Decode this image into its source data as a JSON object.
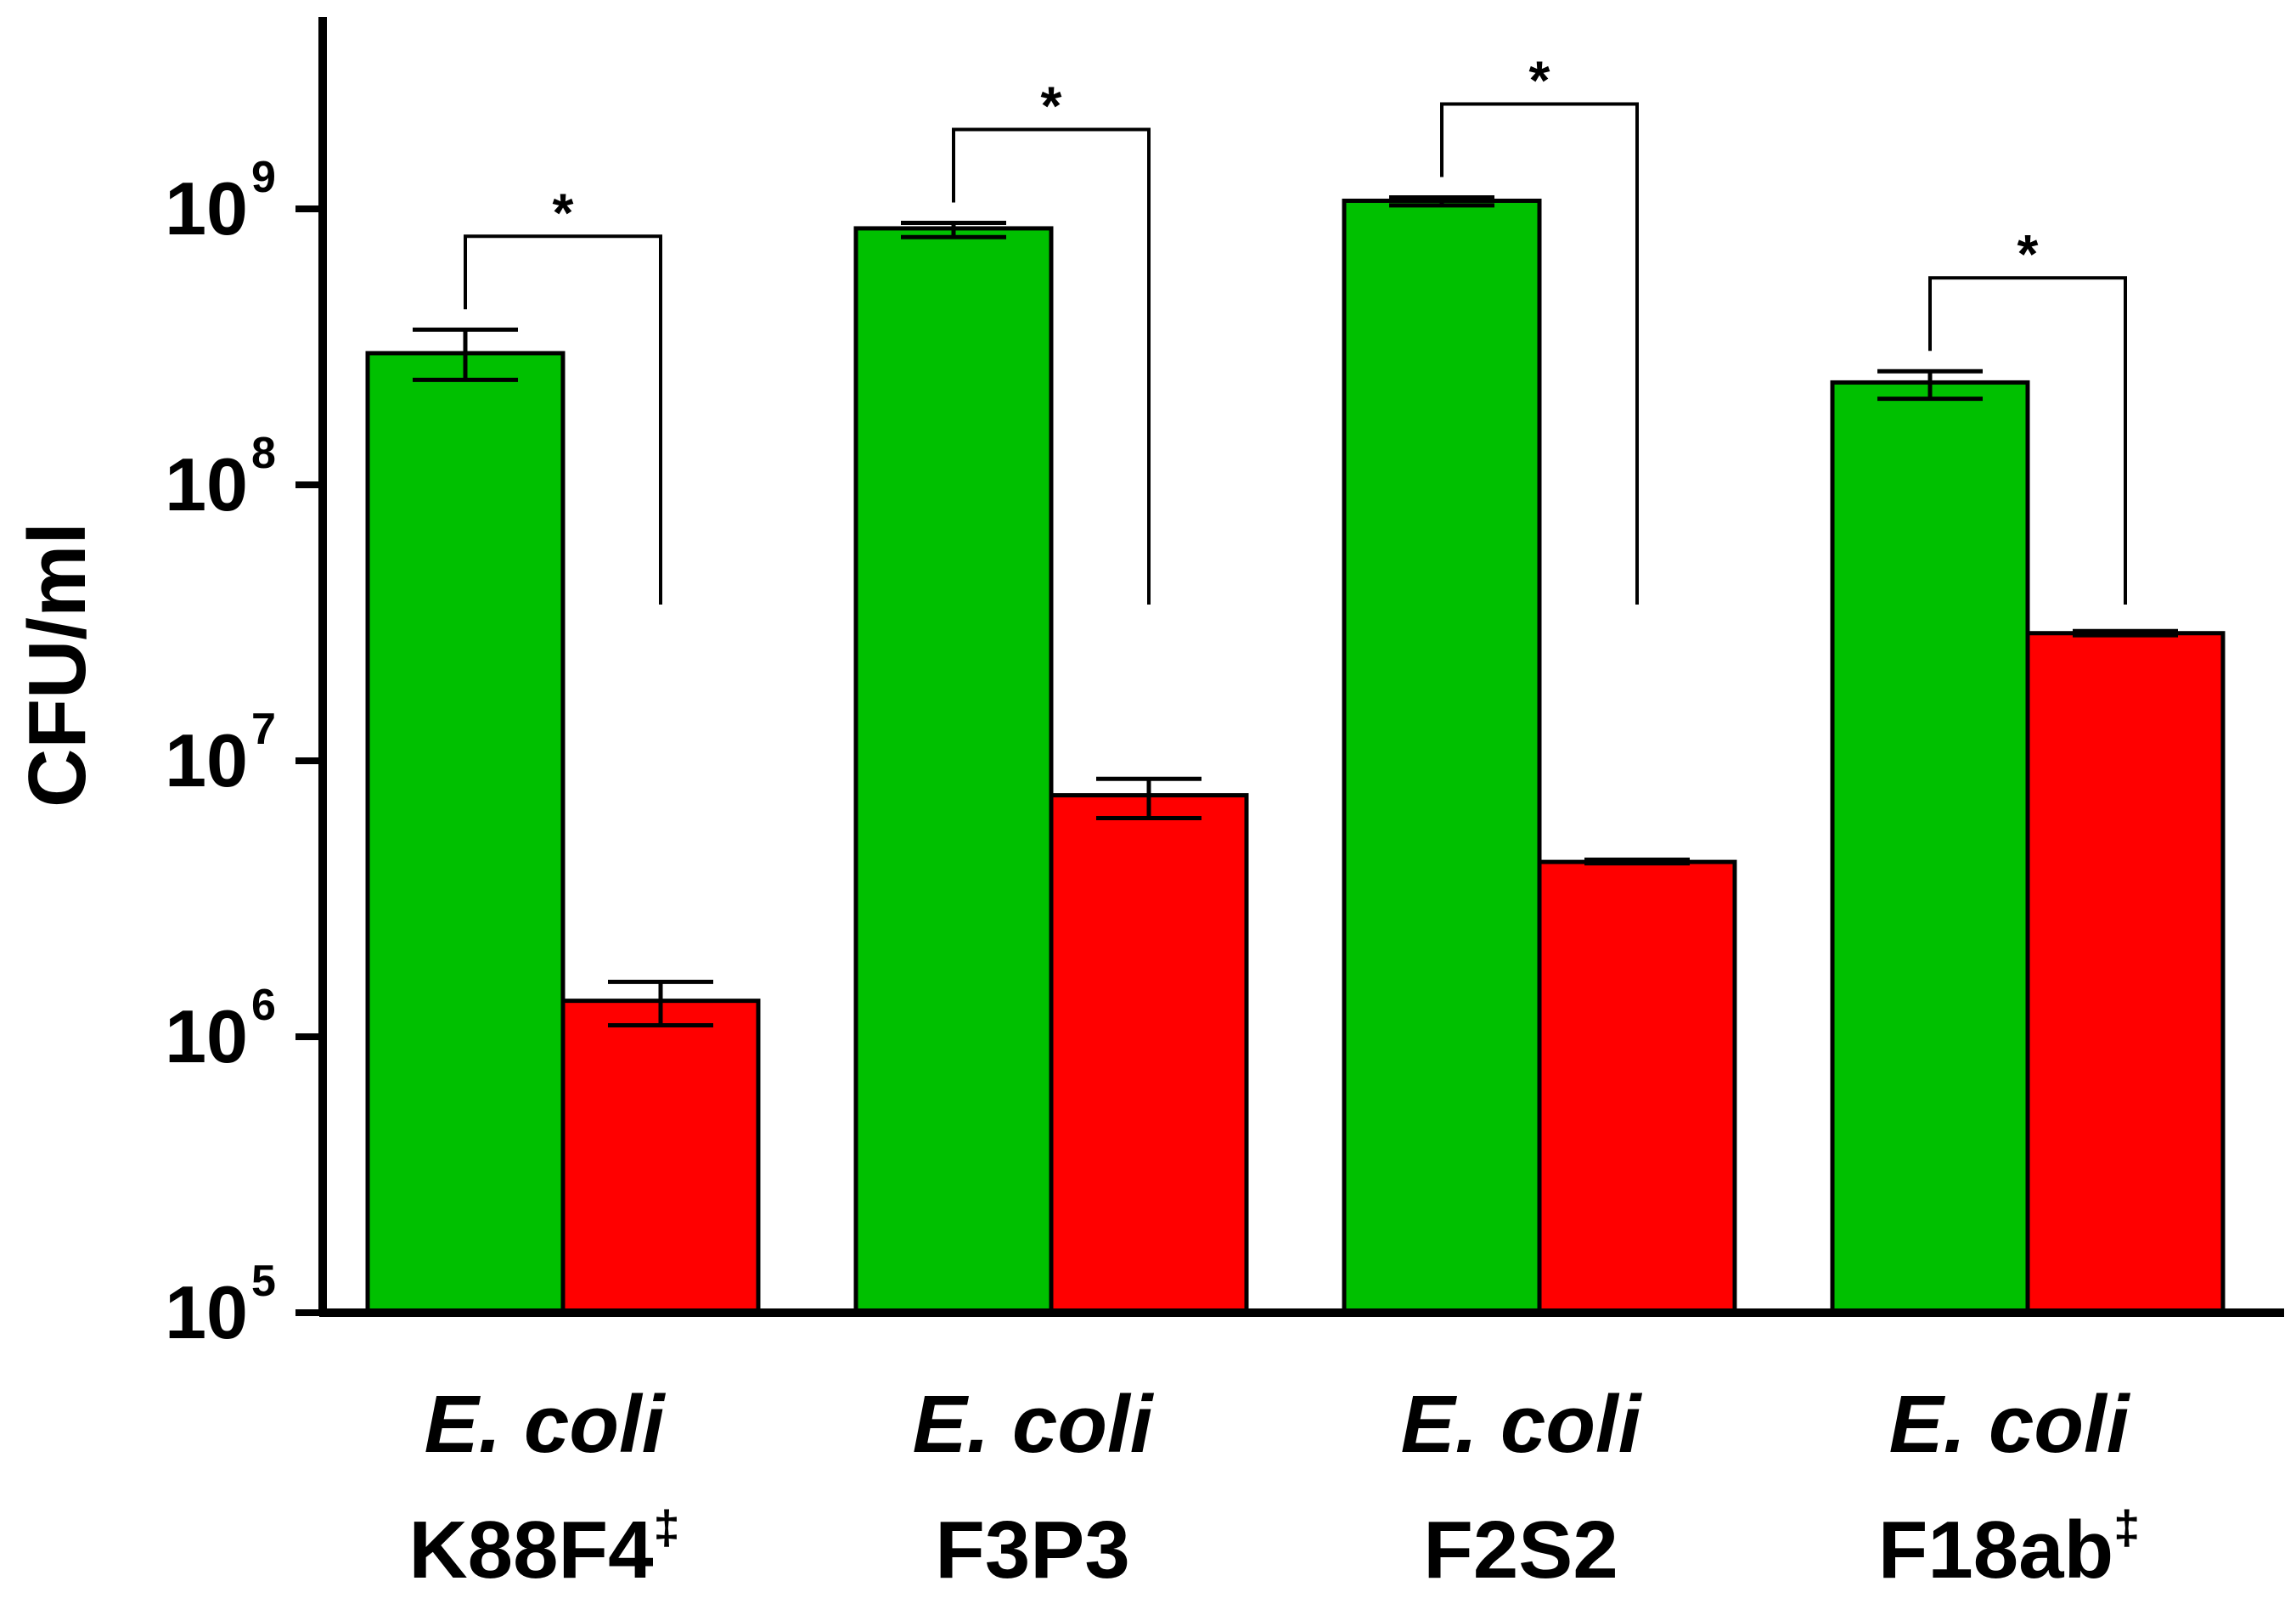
{
  "chart_data": {
    "type": "bar",
    "yscale": "log",
    "ylabel": "CFU/ml",
    "ylim": [
      100000,
      5000000000
    ],
    "yticks": [
      {
        "value": 100000,
        "base": "10",
        "exp": "5"
      },
      {
        "value": 1000000,
        "base": "10",
        "exp": "6"
      },
      {
        "value": 10000000,
        "base": "10",
        "exp": "7"
      },
      {
        "value": 100000000,
        "base": "10",
        "exp": "8"
      },
      {
        "value": 1000000000,
        "base": "10",
        "exp": "9"
      }
    ],
    "categories": [
      {
        "species": "E. coli",
        "strain": "K88F4",
        "mark": "‡"
      },
      {
        "species": "E. coli",
        "strain": "F3P3",
        "mark": ""
      },
      {
        "species": "E. coli",
        "strain": "F2S2",
        "mark": ""
      },
      {
        "species": "E. coli",
        "strain": "F18ab",
        "mark": "‡"
      }
    ],
    "series": [
      {
        "name": "green",
        "color": "#00c000",
        "values": [
          300000000,
          850000000,
          1070000000,
          235000000
        ],
        "err_low": [
          240000000,
          790000000,
          1030000000,
          205000000
        ],
        "err_high": [
          365000000,
          890000000,
          1100000000,
          258000000
        ]
      },
      {
        "name": "red",
        "color": "#ff0000",
        "values": [
          1350000,
          7500000,
          4300000,
          29000000
        ],
        "err_low": [
          1100000,
          6200000,
          4250000,
          28500000
        ],
        "err_high": [
          1580000,
          8600000,
          4380000,
          29500000
        ]
      }
    ],
    "significance": [
      {
        "category": 0,
        "label": "*"
      },
      {
        "category": 1,
        "label": "*"
      },
      {
        "category": 2,
        "label": "*"
      },
      {
        "category": 3,
        "label": "*"
      }
    ]
  }
}
